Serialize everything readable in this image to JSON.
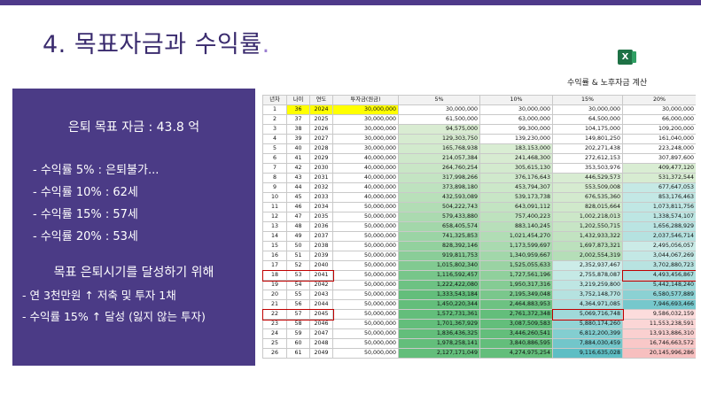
{
  "slide": {
    "title": "4. 목표자금과 수익률",
    "title_dot": ".",
    "sheet_title": "수익률 & 노후자금 계산",
    "excel_icon_label": "X"
  },
  "panel": {
    "goal": "은퇴 목표 자금 : 43.8 억",
    "items": [
      "- 수익률 5% : 은퇴불가...",
      "- 수익률 10% : 62세",
      "- 수익률 15% : 57세",
      "- 수익률 20% : 53세"
    ],
    "plan_title": "목표 은퇴시기를 달성하기 위해",
    "plans": [
      "- 연 3천만원 ↑ 저축 및 투자 1채",
      "- 수익률 15% ↑ 달성 (잃지 않는 투자)"
    ]
  },
  "colors": {
    "panel_bg": "#4b3b86",
    "title_color": "#3a2b6e",
    "highlight_yellow": "#ffff00",
    "box_red": "#c00000"
  },
  "table": {
    "headers": [
      "년차",
      "나이",
      "연도",
      "투자금(원금)",
      "5%",
      "10%",
      "15%",
      "20%"
    ],
    "rows": [
      [
        "1",
        "36",
        "2024",
        "30,000,000",
        "30,000,000",
        "30,000,000",
        "30,000,000",
        "30,000,000"
      ],
      [
        "2",
        "37",
        "2025",
        "30,000,000",
        "61,500,000",
        "63,000,000",
        "64,500,000",
        "66,000,000"
      ],
      [
        "3",
        "38",
        "2026",
        "30,000,000",
        "94,575,000",
        "99,300,000",
        "104,175,000",
        "109,200,000"
      ],
      [
        "4",
        "39",
        "2027",
        "30,000,000",
        "129,303,750",
        "139,230,000",
        "149,801,250",
        "161,040,000"
      ],
      [
        "5",
        "40",
        "2028",
        "30,000,000",
        "165,768,938",
        "183,153,000",
        "202,271,438",
        "223,248,000"
      ],
      [
        "6",
        "41",
        "2029",
        "40,000,000",
        "214,057,384",
        "241,468,300",
        "272,612,153",
        "307,897,600"
      ],
      [
        "7",
        "42",
        "2030",
        "40,000,000",
        "264,760,254",
        "305,615,130",
        "353,503,976",
        "409,477,120"
      ],
      [
        "8",
        "43",
        "2031",
        "40,000,000",
        "317,998,266",
        "376,176,643",
        "446,529,573",
        "531,372,544"
      ],
      [
        "9",
        "44",
        "2032",
        "40,000,000",
        "373,898,180",
        "453,794,307",
        "553,509,008",
        "677,647,053"
      ],
      [
        "10",
        "45",
        "2033",
        "40,000,000",
        "432,593,089",
        "539,173,738",
        "676,535,360",
        "853,176,463"
      ],
      [
        "11",
        "46",
        "2034",
        "50,000,000",
        "504,222,743",
        "643,091,112",
        "828,015,664",
        "1,073,811,756"
      ],
      [
        "12",
        "47",
        "2035",
        "50,000,000",
        "579,433,880",
        "757,400,223",
        "1,002,218,013",
        "1,338,574,107"
      ],
      [
        "13",
        "48",
        "2036",
        "50,000,000",
        "658,405,574",
        "883,140,245",
        "1,202,550,715",
        "1,656,288,929"
      ],
      [
        "14",
        "49",
        "2037",
        "50,000,000",
        "741,325,853",
        "1,021,454,270",
        "1,432,933,322",
        "2,037,546,714"
      ],
      [
        "15",
        "50",
        "2038",
        "50,000,000",
        "828,392,146",
        "1,173,599,697",
        "1,697,873,321",
        "2,495,056,057"
      ],
      [
        "16",
        "51",
        "2039",
        "50,000,000",
        "919,811,753",
        "1,340,959,667",
        "2,002,554,319",
        "3,044,067,269"
      ],
      [
        "17",
        "52",
        "2040",
        "50,000,000",
        "1,015,802,340",
        "1,525,055,633",
        "2,352,937,467",
        "3,702,880,723"
      ],
      [
        "18",
        "53",
        "2041",
        "50,000,000",
        "1,116,592,457",
        "1,727,561,196",
        "2,755,878,087",
        "4,493,456,867"
      ],
      [
        "19",
        "54",
        "2042",
        "50,000,000",
        "1,222,422,080",
        "1,950,317,316",
        "3,219,259,800",
        "5,442,148,240"
      ],
      [
        "20",
        "55",
        "2043",
        "50,000,000",
        "1,333,543,184",
        "2,195,349,048",
        "3,752,148,770",
        "6,580,577,889"
      ],
      [
        "21",
        "56",
        "2044",
        "50,000,000",
        "1,450,220,344",
        "2,464,883,953",
        "4,364,971,085",
        "7,946,693,466"
      ],
      [
        "22",
        "57",
        "2045",
        "50,000,000",
        "1,572,731,361",
        "2,761,372,348",
        "5,069,716,748",
        "9,586,032,159"
      ],
      [
        "23",
        "58",
        "2046",
        "50,000,000",
        "1,701,367,929",
        "3,087,509,583",
        "5,880,174,260",
        "11,553,238,591"
      ],
      [
        "24",
        "59",
        "2047",
        "50,000,000",
        "1,836,436,325",
        "3,446,260,541",
        "6,812,200,399",
        "13,913,886,310"
      ],
      [
        "25",
        "60",
        "2048",
        "50,000,000",
        "1,978,258,141",
        "3,840,886,595",
        "7,884,030,459",
        "16,746,663,572"
      ],
      [
        "26",
        "61",
        "2049",
        "50,000,000",
        "2,127,171,049",
        "4,274,975,254",
        "9,116,635,028",
        "20,145,996,286"
      ]
    ]
  }
}
